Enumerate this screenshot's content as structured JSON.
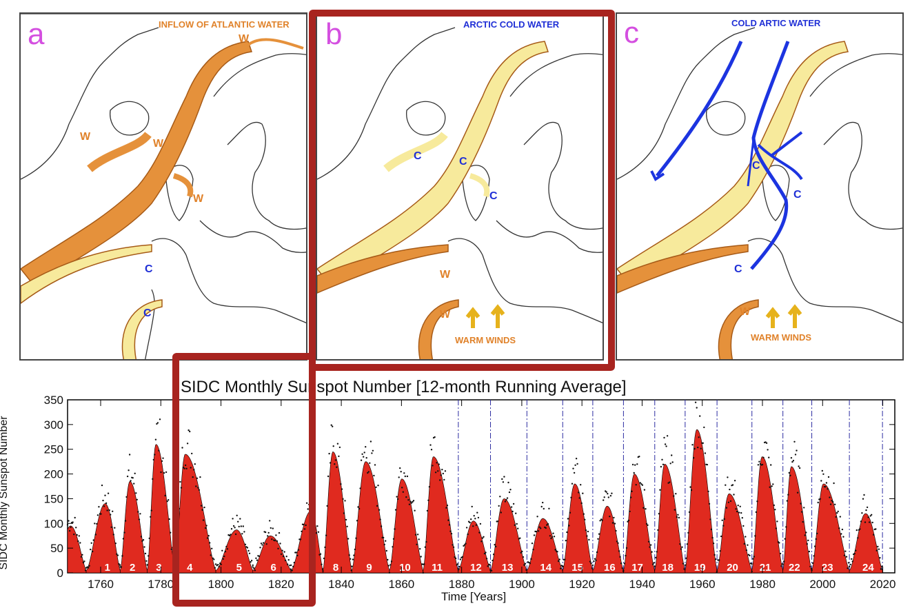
{
  "panels": [
    {
      "letter": "a",
      "title": "INFLOW OF ATLANTIC WATER",
      "title_color": "#e0822a",
      "labels": [
        "W",
        "W",
        "W",
        "W",
        "C",
        "C"
      ]
    },
    {
      "letter": "b",
      "title": "ARCTIC COLD WATER",
      "title_color": "#1f2fd6",
      "labels": [
        "C",
        "C",
        "C",
        "W",
        "W"
      ],
      "winds": "WARM WINDS"
    },
    {
      "letter": "c",
      "title": "COLD ARTIC WATER",
      "title_color": "#1f2fd6",
      "labels": [
        "C",
        "C",
        "C",
        "W"
      ],
      "winds": "WARM WINDS"
    }
  ],
  "colors": {
    "warm": "#e5913b",
    "cold_flow": "#f7ea9c",
    "arctic_arrow": "#1c34e0",
    "highlight": "#a8241f",
    "bars": "#e02a1f"
  },
  "chart_data": {
    "type": "area",
    "title": "SIDC Monthly Sunspot Number [12-month Running Average]",
    "xlabel": "Time [Years]",
    "ylabel": "SIDC Monthly Sunspot Number",
    "xlim": [
      1749,
      2024
    ],
    "ylim": [
      0,
      350
    ],
    "yticks": [
      0,
      50,
      100,
      150,
      200,
      250,
      300,
      350
    ],
    "xticks": [
      1760,
      1780,
      1800,
      1820,
      1840,
      1860,
      1880,
      1900,
      1920,
      1940,
      1960,
      1980,
      2000,
      2020
    ],
    "cycles": [
      {
        "n": "1",
        "min_start": 1755.2,
        "max_year": 1761.5,
        "peak": 135,
        "min_end": 1766.5
      },
      {
        "n": "2",
        "min_start": 1766.5,
        "max_year": 1769.7,
        "peak": 180,
        "min_end": 1775.5
      },
      {
        "n": "3",
        "min_start": 1775.5,
        "max_year": 1778.4,
        "peak": 255,
        "min_end": 1784.7
      },
      {
        "n": "4",
        "min_start": 1784.7,
        "max_year": 1788.1,
        "peak": 235,
        "min_end": 1798.3
      },
      {
        "n": "5",
        "min_start": 1798.3,
        "max_year": 1805.2,
        "peak": 82,
        "min_end": 1810.6
      },
      {
        "n": "6",
        "min_start": 1810.6,
        "max_year": 1816.4,
        "peak": 70,
        "min_end": 1823.3
      },
      {
        "n": "7",
        "min_start": 1823.3,
        "max_year": 1829.9,
        "peak": 120,
        "min_end": 1833.9
      },
      {
        "n": "8",
        "min_start": 1833.9,
        "max_year": 1837.2,
        "peak": 240,
        "min_end": 1843.5
      },
      {
        "n": "9",
        "min_start": 1843.5,
        "max_year": 1848.1,
        "peak": 220,
        "min_end": 1856.0
      },
      {
        "n": "10",
        "min_start": 1856.0,
        "max_year": 1860.1,
        "peak": 185,
        "min_end": 1867.2
      },
      {
        "n": "11",
        "min_start": 1867.2,
        "max_year": 1870.6,
        "peak": 230,
        "min_end": 1878.9
      },
      {
        "n": "12",
        "min_start": 1878.9,
        "max_year": 1883.9,
        "peak": 100,
        "min_end": 1889.6
      },
      {
        "n": "13",
        "min_start": 1889.6,
        "max_year": 1894.1,
        "peak": 145,
        "min_end": 1901.7
      },
      {
        "n": "14",
        "min_start": 1901.7,
        "max_year": 1907.0,
        "peak": 105,
        "min_end": 1913.6
      },
      {
        "n": "15",
        "min_start": 1913.6,
        "max_year": 1917.6,
        "peak": 175,
        "min_end": 1923.6
      },
      {
        "n": "16",
        "min_start": 1923.6,
        "max_year": 1928.4,
        "peak": 130,
        "min_end": 1933.8
      },
      {
        "n": "17",
        "min_start": 1933.8,
        "max_year": 1937.4,
        "peak": 195,
        "min_end": 1944.2
      },
      {
        "n": "18",
        "min_start": 1944.2,
        "max_year": 1947.5,
        "peak": 215,
        "min_end": 1954.3
      },
      {
        "n": "19",
        "min_start": 1954.3,
        "max_year": 1958.2,
        "peak": 285,
        "min_end": 1964.9
      },
      {
        "n": "20",
        "min_start": 1964.9,
        "max_year": 1968.9,
        "peak": 155,
        "min_end": 1976.5
      },
      {
        "n": "21",
        "min_start": 1976.5,
        "max_year": 1979.9,
        "peak": 230,
        "min_end": 1986.8
      },
      {
        "n": "22",
        "min_start": 1986.8,
        "max_year": 1989.6,
        "peak": 210,
        "min_end": 1996.4
      },
      {
        "n": "23",
        "min_start": 1996.4,
        "max_year": 2000.3,
        "peak": 175,
        "min_end": 2008.9
      },
      {
        "n": "24",
        "min_start": 2008.9,
        "max_year": 2014.3,
        "peak": 115,
        "min_end": 2019.9
      }
    ],
    "series_color": "#e02a1f",
    "dots_color": "#111111",
    "grid": false
  }
}
